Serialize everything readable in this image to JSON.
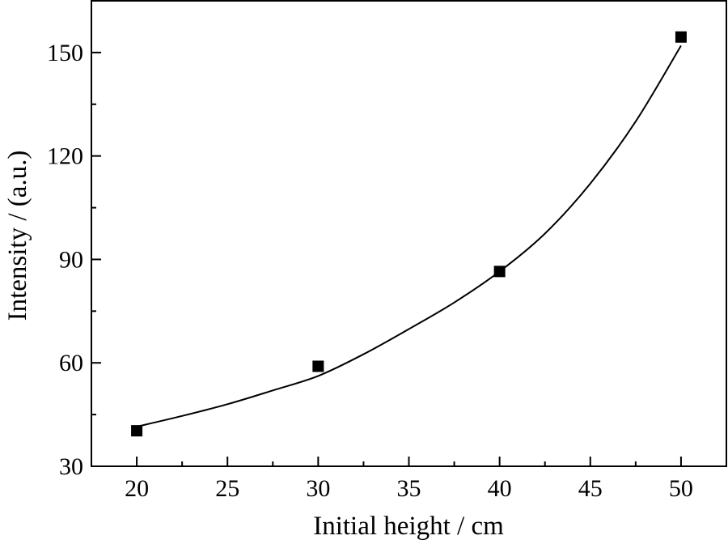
{
  "chart_data": {
    "type": "scatter",
    "title": "",
    "xlabel": "Initial height / cm",
    "ylabel": "Intensity / (a.u.)",
    "xlim": [
      17.5,
      52.5
    ],
    "ylim": [
      30,
      165
    ],
    "x_ticks": [
      20,
      25,
      30,
      35,
      40,
      45,
      50
    ],
    "x_tick_labels": [
      "20",
      "25",
      "30",
      "35",
      "40",
      "45",
      "50"
    ],
    "x_minor_ticks": [
      22.5,
      27.5,
      32.5,
      37.5,
      42.5,
      47.5
    ],
    "y_ticks": [
      30,
      60,
      90,
      120,
      150
    ],
    "y_tick_labels": [
      "30",
      "60",
      "90",
      "120",
      "150"
    ],
    "y_minor_ticks": [
      45,
      75,
      105,
      135
    ],
    "grid": false,
    "legend": "none",
    "series": [
      {
        "marker": "square",
        "color": "#000000",
        "x": [
          20,
          30,
          40,
          50
        ],
        "y": [
          40.3,
          59,
          86.5,
          154.5
        ]
      }
    ],
    "fit_curve": {
      "color": "#000000",
      "x": [
        20,
        22.5,
        25,
        27.5,
        30,
        32.5,
        35,
        37.5,
        40,
        42.5,
        45,
        47.5,
        50
      ],
      "y": [
        41.5,
        44.6,
        48.0,
        52.0,
        56.2,
        62.5,
        69.8,
        77.5,
        86.5,
        97.5,
        112.0,
        130.0,
        152.0
      ]
    }
  }
}
